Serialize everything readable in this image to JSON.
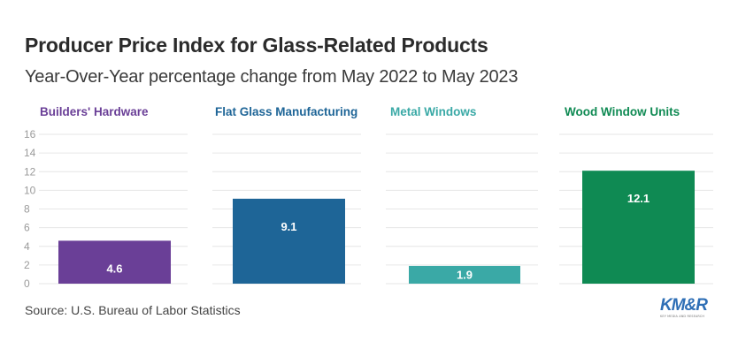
{
  "title": "Producer Price Index for Glass-Related Products",
  "subtitle": "Year-Over-Year percentage change from May 2022 to May 2023",
  "source": "Source: U.S. Bureau of Labor Statistics",
  "logo": {
    "mark": "KM&R",
    "tagline": "KEY MEDIA AND RESEARCH"
  },
  "chart_data": {
    "type": "bar",
    "layout": "small-multiples",
    "categories": [
      "Builders' Hardware",
      "Flat Glass Manufacturing",
      "Metal Windows",
      "Wood Window Units"
    ],
    "values": [
      4.6,
      9.1,
      1.9,
      12.1
    ],
    "value_labels": [
      "4.6",
      "9.1",
      "1.9",
      "12.1"
    ],
    "colors": [
      "#6a3f97",
      "#1e6597",
      "#3aa9a6",
      "#0f8a53"
    ],
    "ylim": [
      0,
      16
    ],
    "yticks": [
      "0",
      "2",
      "4",
      "6",
      "8",
      "10",
      "12",
      "14",
      "16"
    ],
    "title": "Producer Price Index for Glass-Related Products",
    "xlabel": "",
    "ylabel": "",
    "grid": true
  }
}
